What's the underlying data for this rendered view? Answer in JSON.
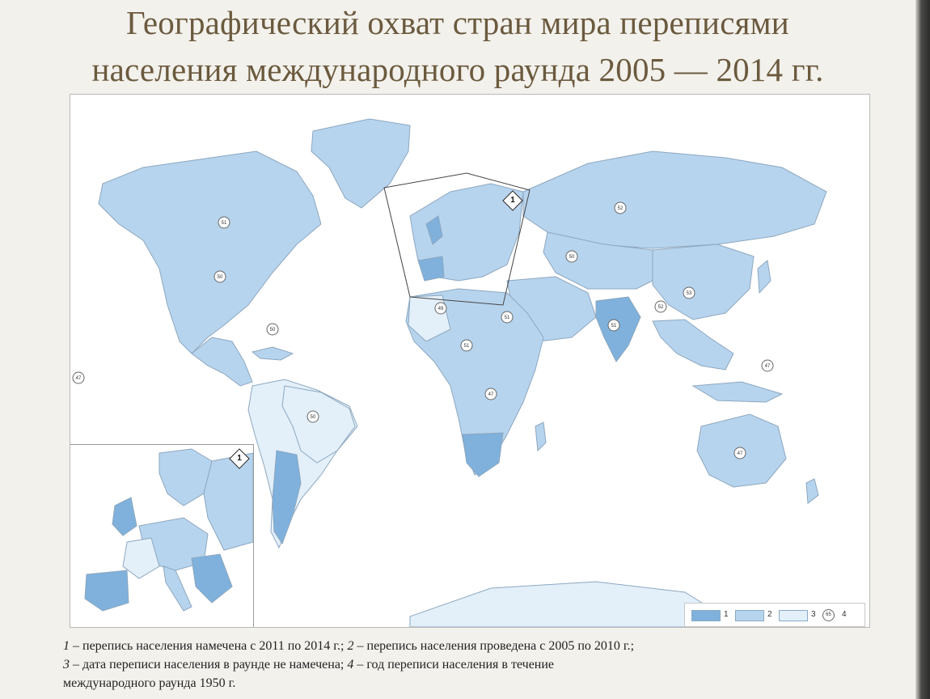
{
  "title": {
    "line1": "Географический охват стран мира переписями",
    "line2": "населения международного раунда 2005 — 2014 гг."
  },
  "colors": {
    "category_1": "#7fb1dc",
    "category_2": "#b7d4ee",
    "category_3": "#e3f0fa",
    "land_outline": "#8da7bf",
    "background": "#f3f1ec"
  },
  "map": {
    "inset_badge": "1",
    "europe_badge": "1",
    "country_year_markers": [
      "51",
      "50",
      "52",
      "50",
      "53",
      "51",
      "47",
      "47",
      "49",
      "50",
      "52",
      "47",
      "51",
      "47",
      "50",
      "51"
    ]
  },
  "legend": {
    "item1_label": "1",
    "item2_label": "2",
    "item3_label": "3",
    "item4_label": "4",
    "item4_marker": "65"
  },
  "caption": {
    "line1_num1": "1",
    "line1_text1": " – перепись населения намечена с 2011 по 2014 г.; ",
    "line1_num2": "2",
    "line1_text2": " – перепись населения проведена с 2005 по 2010 г.;",
    "line2_num3": "3",
    "line2_text3": " – дата переписи населения в раунде не намечена; ",
    "line2_num4": "4",
    "line2_text4": " – год переписи населения в течение",
    "line3_text": "международного раунда 1950 г."
  }
}
